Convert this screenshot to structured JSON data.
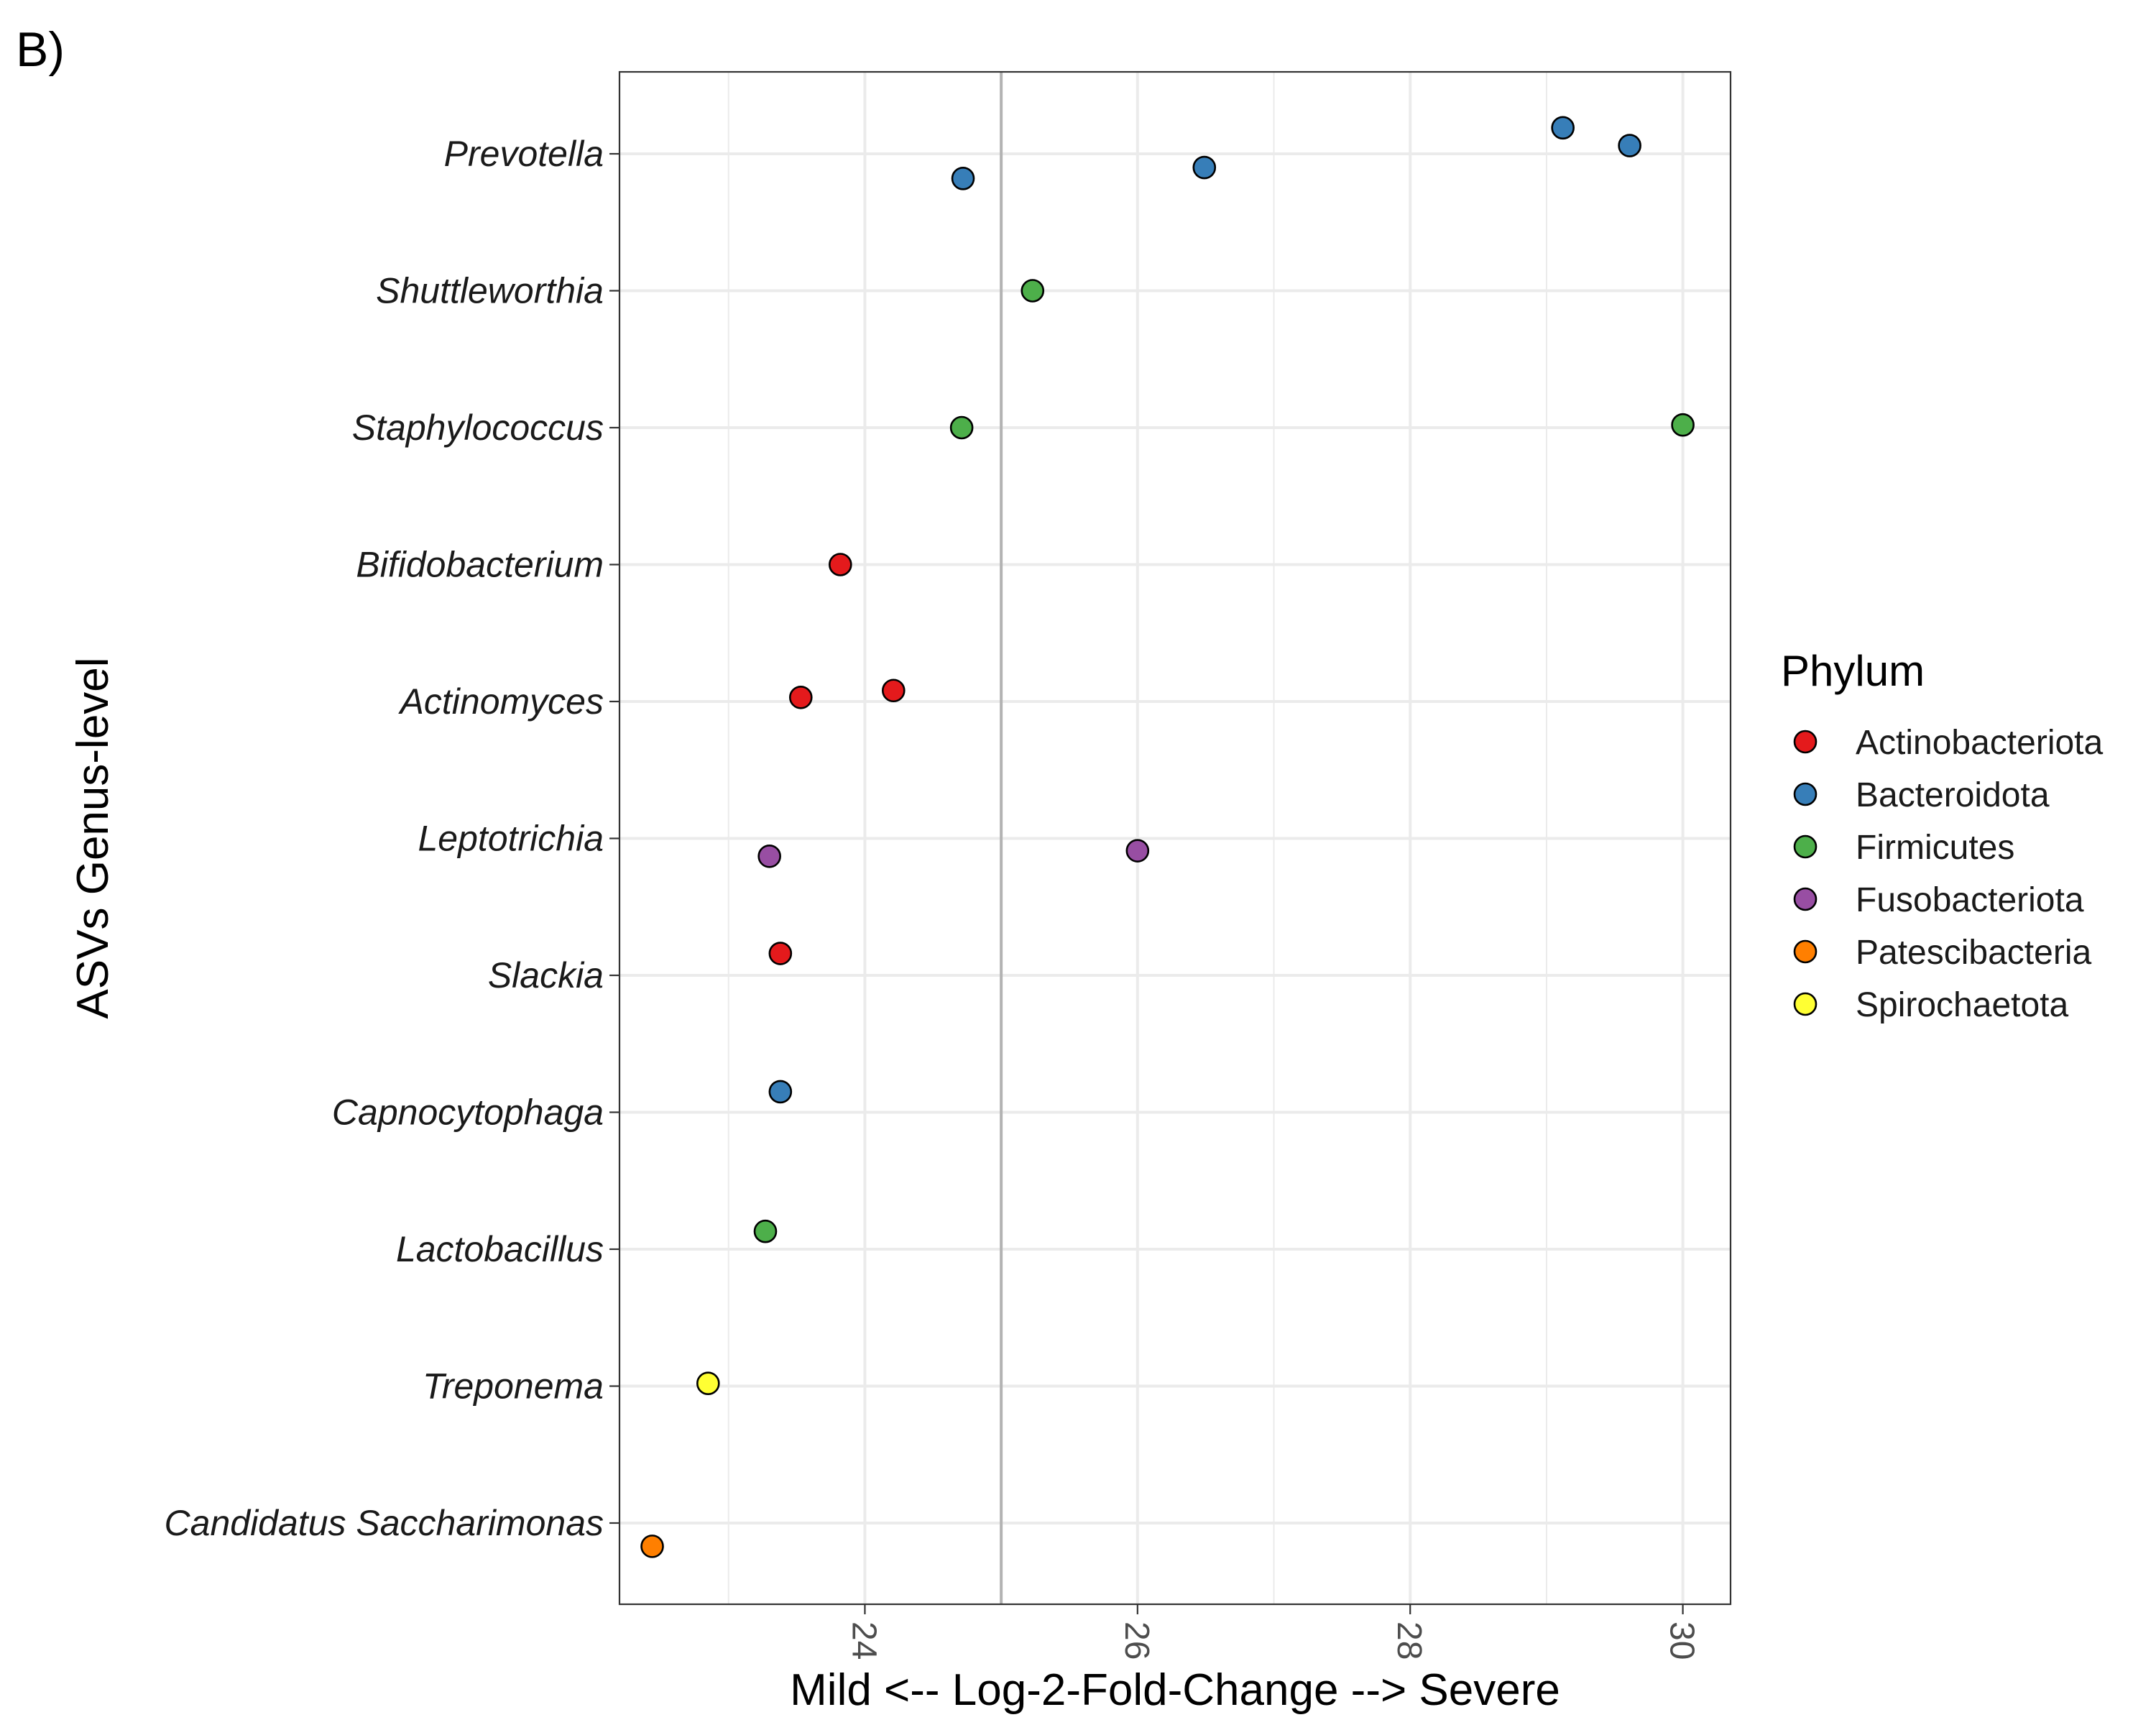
{
  "panel_label": "B)",
  "chart_data": {
    "type": "scatter",
    "title": "",
    "xlabel": "Mild <-- Log-2-Fold-Change --> Severe",
    "ylabel": "ASVs Genus-level",
    "xlim": [
      22.2,
      30.35
    ],
    "x_ticks": [
      24,
      26,
      28,
      30
    ],
    "x_tick_labels": [
      "24",
      "26",
      "28",
      "30"
    ],
    "x_tick_label_rotation": "vertical",
    "reference_line_x": 25,
    "grid": true,
    "categories": [
      "Prevotella",
      "Shuttleworthia",
      "Staphylococcus",
      "Bifidobacterium",
      "Actinomyces",
      "Leptotrichia",
      "Slackia",
      "Capnocytophaga",
      "Lactobacillus",
      "Treponema",
      "Candidatus Saccharimonas"
    ],
    "legend": {
      "title": "Phylum",
      "placement": "right",
      "entries": [
        {
          "label": "Actinobacteriota",
          "color": "#e41a1c"
        },
        {
          "label": "Bacteroidota",
          "color": "#377eb8"
        },
        {
          "label": "Firmicutes",
          "color": "#4daf4a"
        },
        {
          "label": "Fusobacteriota",
          "color": "#984ea3"
        },
        {
          "label": "Patescibacteria",
          "color": "#ff7f00"
        },
        {
          "label": "Spirochaetota",
          "color": "#ffff33"
        }
      ]
    },
    "points": [
      {
        "genus": "Prevotella",
        "phylum": "Bacteroidota",
        "x": 29.12,
        "jitter": 0.19
      },
      {
        "genus": "Prevotella",
        "phylum": "Bacteroidota",
        "x": 29.61,
        "jitter": 0.06
      },
      {
        "genus": "Prevotella",
        "phylum": "Bacteroidota",
        "x": 26.49,
        "jitter": -0.1
      },
      {
        "genus": "Prevotella",
        "phylum": "Bacteroidota",
        "x": 24.72,
        "jitter": -0.18
      },
      {
        "genus": "Shuttleworthia",
        "phylum": "Firmicutes",
        "x": 25.23,
        "jitter": 0.0
      },
      {
        "genus": "Staphylococcus",
        "phylum": "Firmicutes",
        "x": 24.71,
        "jitter": 0.0
      },
      {
        "genus": "Staphylococcus",
        "phylum": "Firmicutes",
        "x": 30.0,
        "jitter": 0.02
      },
      {
        "genus": "Bifidobacterium",
        "phylum": "Actinobacteriota",
        "x": 23.82,
        "jitter": 0.0
      },
      {
        "genus": "Actinomyces",
        "phylum": "Actinobacteriota",
        "x": 24.21,
        "jitter": 0.08
      },
      {
        "genus": "Actinomyces",
        "phylum": "Actinobacteriota",
        "x": 23.53,
        "jitter": 0.03
      },
      {
        "genus": "Leptotrichia",
        "phylum": "Fusobacteriota",
        "x": 26.0,
        "jitter": -0.09
      },
      {
        "genus": "Leptotrichia",
        "phylum": "Fusobacteriota",
        "x": 23.3,
        "jitter": -0.13
      },
      {
        "genus": "Slackia",
        "phylum": "Actinobacteriota",
        "x": 23.38,
        "jitter": 0.16
      },
      {
        "genus": "Capnocytophaga",
        "phylum": "Bacteroidota",
        "x": 23.38,
        "jitter": 0.15
      },
      {
        "genus": "Lactobacillus",
        "phylum": "Firmicutes",
        "x": 23.27,
        "jitter": 0.13
      },
      {
        "genus": "Treponema",
        "phylum": "Spirochaetota",
        "x": 22.85,
        "jitter": 0.02
      },
      {
        "genus": "Candidatus Saccharimonas",
        "phylum": "Patescibacteria",
        "x": 22.44,
        "jitter": -0.17
      }
    ]
  }
}
